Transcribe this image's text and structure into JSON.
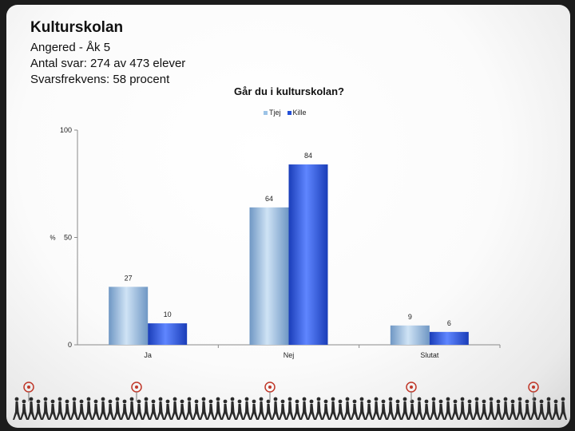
{
  "header": {
    "title": "Kulturskolan",
    "line1": "Angered - Åk 5",
    "line2": "Antal svar: 274 av 473 elever",
    "line3": "Svarsfrekvens: 58 procent"
  },
  "chart_data": {
    "type": "bar",
    "title": "Går du i kulturskolan?",
    "categories": [
      "Ja",
      "Nej",
      "Slutat"
    ],
    "series": [
      {
        "name": "Tjej",
        "values": [
          27,
          64,
          9
        ],
        "color": "#9cc3e6"
      },
      {
        "name": "Kille",
        "values": [
          10,
          84,
          6
        ],
        "color": "#2450d8"
      }
    ],
    "ylabel": "%",
    "ylim": [
      0,
      100
    ],
    "yticks": [
      0,
      50,
      100
    ],
    "grid": false,
    "legend": "top-center"
  },
  "colors": {
    "tjej_light": "#cfe3f5",
    "tjej_dark": "#6f97c4",
    "kille_light": "#5f86ff",
    "kille_dark": "#1a3db8",
    "footer_figures": "#2a2a2a",
    "footer_accent": "#c0392b"
  },
  "footer": {
    "icon": "walking-people-silhouettes"
  }
}
